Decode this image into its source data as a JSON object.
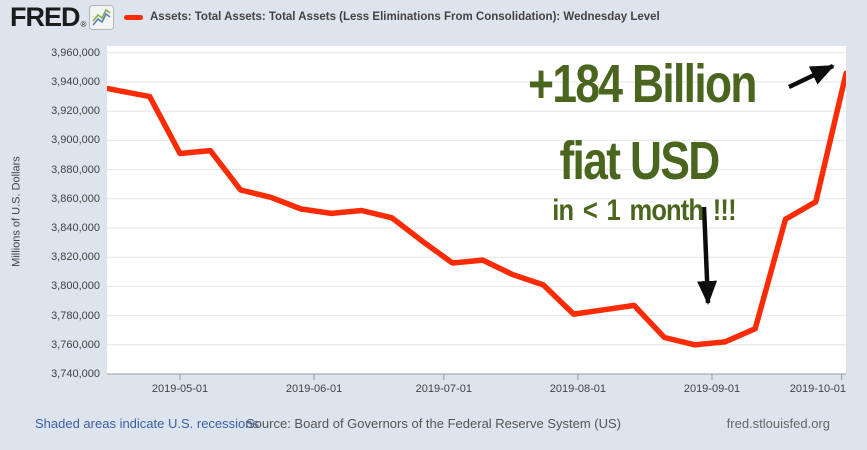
{
  "header": {
    "logo_text": "FRED",
    "registered_mark": "®",
    "series_title": "Assets: Total Assets: Total Assets (Less Eliminations From Consolidation): Wednesday Level"
  },
  "chart_data": {
    "type": "line",
    "series_name": "Assets: Total Assets: Total Assets (Less Eliminations From Consolidation): Wednesday Level",
    "unit_label": "Millions of U.S. Dollars",
    "line_color": "#fa2b05",
    "grid": true,
    "legend_position": "top",
    "x": [
      "2019-04-10",
      "2019-04-17",
      "2019-04-24",
      "2019-05-01",
      "2019-05-08",
      "2019-05-15",
      "2019-05-22",
      "2019-05-29",
      "2019-06-05",
      "2019-06-12",
      "2019-06-19",
      "2019-06-26",
      "2019-07-03",
      "2019-07-10",
      "2019-07-17",
      "2019-07-24",
      "2019-07-31",
      "2019-08-07",
      "2019-08-14",
      "2019-08-21",
      "2019-08-28",
      "2019-09-04",
      "2019-09-11",
      "2019-09-18",
      "2019-09-25",
      "2019-10-02"
    ],
    "values": [
      3938000,
      3934000,
      3930000,
      3891000,
      3893000,
      3866000,
      3861000,
      3853000,
      3850000,
      3852000,
      3847000,
      3831000,
      3816000,
      3818000,
      3808000,
      3801000,
      3781000,
      3784000,
      3787000,
      3765000,
      3760000,
      3762000,
      3771000,
      3846000,
      3858000,
      3946000
    ],
    "ylim": [
      3740000,
      3960000
    ],
    "ytick_step": 20000,
    "ytick_values": [
      3740000,
      3760000,
      3780000,
      3800000,
      3820000,
      3840000,
      3860000,
      3880000,
      3900000,
      3920000,
      3940000,
      3960000
    ],
    "ytick_labels": [
      "3,740,000",
      "3,760,000",
      "3,780,000",
      "3,800,000",
      "3,820,000",
      "3,840,000",
      "3,860,000",
      "3,880,000",
      "3,900,000",
      "3,920,000",
      "3,940,000",
      "3,960,000"
    ],
    "xtick_labels": [
      "2019-05-01",
      "2019-06-01",
      "2019-07-01",
      "2019-08-01",
      "2019-09-01",
      "2019-10-01"
    ]
  },
  "annotation": {
    "line1": "+184 Billion",
    "line2": "fiat USD",
    "line3": "in < 1 month !!!",
    "color": "#4a661e"
  },
  "footer": {
    "recession_note": "Shaded areas indicate U.S. recessions",
    "source": "Source: Board of Governors of the Federal Reserve System (US)",
    "site": "fred.stlouisfed.org"
  }
}
